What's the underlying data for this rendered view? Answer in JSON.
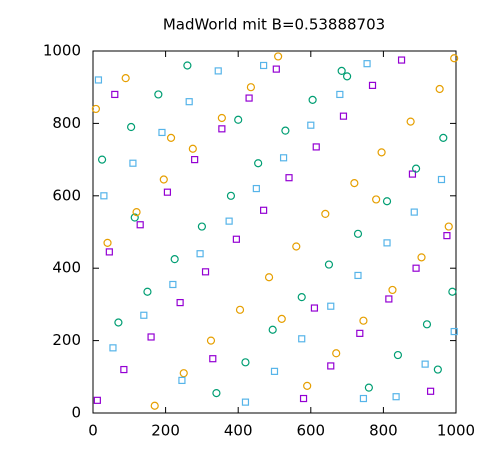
{
  "chart_data": {
    "type": "scatter",
    "title": "MadWorld mit B=0.53888703",
    "xlim": [
      0,
      1000
    ],
    "ylim": [
      0,
      1000
    ],
    "xticks": [
      0,
      200,
      400,
      600,
      800,
      1000
    ],
    "yticks": [
      0,
      200,
      400,
      600,
      800,
      1000
    ],
    "series": [
      {
        "color": "#9400d3",
        "marker": "square",
        "x": [
          12,
          85,
          160,
          240,
          310,
          395,
          470,
          540,
          615,
          690,
          770,
          850,
          930,
          45,
          130,
          205,
          280,
          355,
          430,
          505,
          580,
          655,
          735,
          815,
          890,
          975,
          60,
          330,
          610,
          880
        ],
        "y": [
          35,
          120,
          210,
          305,
          390,
          480,
          560,
          650,
          735,
          820,
          905,
          975,
          60,
          445,
          520,
          610,
          700,
          785,
          870,
          950,
          40,
          130,
          220,
          315,
          400,
          490,
          880,
          150,
          290,
          660
        ]
      },
      {
        "color": "#009e73",
        "marker": "circle",
        "x": [
          25,
          105,
          180,
          260,
          340,
          420,
          495,
          575,
          650,
          730,
          810,
          890,
          965,
          70,
          150,
          225,
          300,
          380,
          455,
          530,
          605,
          685,
          760,
          840,
          920,
          990,
          115,
          400,
          700,
          950
        ],
        "y": [
          700,
          790,
          880,
          960,
          55,
          140,
          230,
          320,
          410,
          495,
          585,
          675,
          760,
          250,
          335,
          425,
          515,
          600,
          690,
          780,
          865,
          945,
          70,
          160,
          245,
          335,
          540,
          810,
          930,
          120
        ]
      },
      {
        "color": "#e69f00",
        "marker": "circle",
        "x": [
          40,
          120,
          195,
          275,
          355,
          435,
          510,
          590,
          670,
          745,
          825,
          905,
          980,
          8,
          90,
          170,
          250,
          325,
          405,
          485,
          560,
          640,
          720,
          795,
          875,
          955,
          215,
          520,
          780,
          995
        ],
        "y": [
          470,
          555,
          645,
          730,
          815,
          900,
          985,
          75,
          165,
          255,
          340,
          430,
          515,
          840,
          925,
          20,
          110,
          200,
          285,
          375,
          460,
          550,
          635,
          720,
          805,
          895,
          760,
          260,
          590,
          980
        ]
      },
      {
        "color": "#56b4e9",
        "marker": "square",
        "x": [
          55,
          140,
          220,
          295,
          375,
          450,
          525,
          600,
          680,
          755,
          835,
          915,
          995,
          30,
          110,
          190,
          265,
          345,
          420,
          500,
          575,
          655,
          730,
          810,
          885,
          960,
          245,
          470,
          745,
          15
        ],
        "y": [
          180,
          270,
          355,
          440,
          530,
          620,
          705,
          795,
          880,
          965,
          45,
          135,
          225,
          600,
          690,
          775,
          860,
          945,
          30,
          115,
          205,
          295,
          380,
          470,
          555,
          645,
          90,
          960,
          40,
          920
        ]
      }
    ]
  }
}
